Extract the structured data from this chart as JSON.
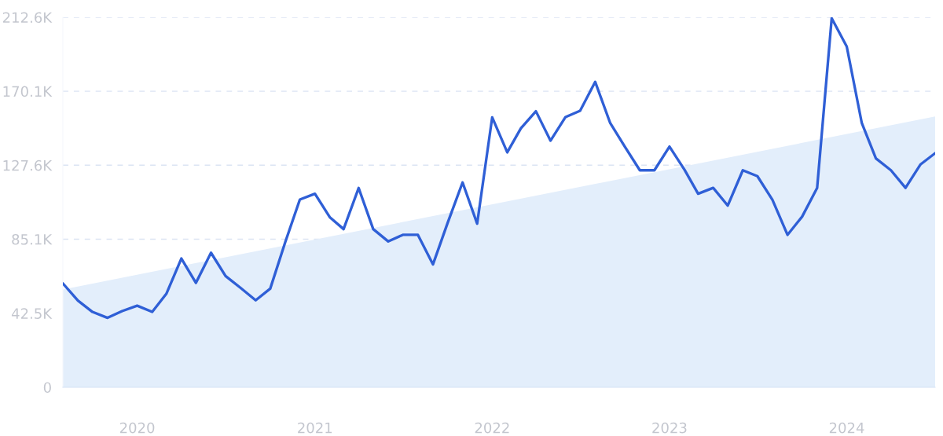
{
  "chart_data": {
    "type": "line",
    "x": [
      "2019-08",
      "2019-09",
      "2019-10",
      "2019-11",
      "2019-12",
      "2020-01",
      "2020-02",
      "2020-03",
      "2020-04",
      "2020-05",
      "2020-06",
      "2020-07",
      "2020-08",
      "2020-09",
      "2020-10",
      "2020-11",
      "2020-12",
      "2021-01",
      "2021-02",
      "2021-03",
      "2021-04",
      "2021-05",
      "2021-06",
      "2021-07",
      "2021-08",
      "2021-09",
      "2021-10",
      "2021-11",
      "2021-12",
      "2022-01",
      "2022-02",
      "2022-03",
      "2022-04",
      "2022-05",
      "2022-06",
      "2022-07",
      "2022-08",
      "2022-09",
      "2022-10",
      "2022-11",
      "2022-12",
      "2023-01",
      "2023-02",
      "2023-03",
      "2023-04",
      "2023-05",
      "2023-06",
      "2023-07",
      "2023-08",
      "2023-09",
      "2023-10",
      "2023-11",
      "2023-12",
      "2024-01",
      "2024-02",
      "2024-03",
      "2024-04",
      "2024-05",
      "2024-06",
      "2024-07"
    ],
    "series": [
      {
        "type": "area",
        "color": "#e3eefb",
        "x": [
          "2019-08",
          "2024-07"
        ],
        "values": [
          56.2,
          155.6
        ]
      },
      {
        "color": "#2f5fd6",
        "values": [
          59.7,
          49.8,
          43.3,
          39.9,
          43.8,
          46.9,
          43.3,
          53.7,
          74.0,
          60.0,
          77.3,
          63.9,
          57.1,
          50.0,
          56.7,
          83.5,
          107.9,
          111.2,
          97.6,
          90.9,
          114.5,
          90.9,
          83.8,
          87.6,
          87.6,
          70.6,
          94.3,
          117.7,
          94.0,
          155.1,
          135.0,
          148.8,
          158.6,
          141.7,
          155.3,
          158.9,
          175.5,
          151.8,
          138.3,
          124.7,
          124.7,
          138.3,
          125.0,
          111.2,
          114.6,
          104.4,
          124.7,
          121.3,
          107.7,
          87.6,
          98.0,
          114.5,
          212.0,
          195.8,
          151.8,
          131.5,
          124.7,
          114.6,
          128.1,
          134.5
        ]
      }
    ],
    "xlim": [
      "2019-08",
      "2024-07"
    ],
    "xticks": [
      {
        "value": "2020-01",
        "label": "2020"
      },
      {
        "value": "2021-01",
        "label": "2021"
      },
      {
        "value": "2022-01",
        "label": "2022"
      },
      {
        "value": "2023-01",
        "label": "2023"
      },
      {
        "value": "2024-01",
        "label": "2024"
      }
    ],
    "ylim": [
      0,
      212.6
    ],
    "yticks": [
      {
        "value": 0,
        "label": "0"
      },
      {
        "value": 42.5,
        "label": "42.5K"
      },
      {
        "value": 85.1,
        "label": "85.1K"
      },
      {
        "value": 127.6,
        "label": "127.6K"
      },
      {
        "value": 170.1,
        "label": "170.1K"
      },
      {
        "value": 212.6,
        "label": "212.6K"
      }
    ],
    "grid": "y",
    "legend": false,
    "marker": "none",
    "line_style": "solid"
  }
}
